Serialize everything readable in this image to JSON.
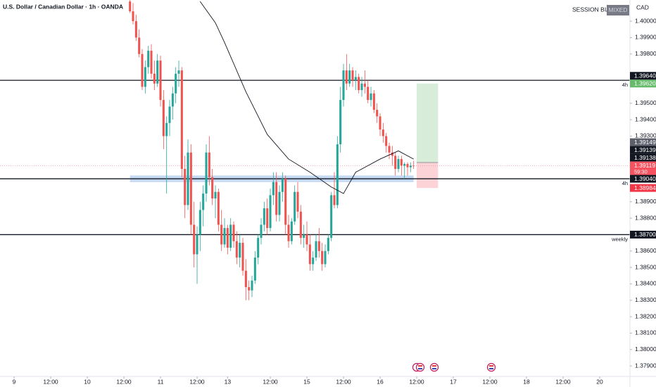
{
  "header": {
    "title": "U.S. Dollar / Canadian Dollar · 1h · OANDA",
    "session_bias": "SESSION BIAS",
    "bias_value": "MIXED",
    "currency": "CAD"
  },
  "chart_data": {
    "type": "candlestick",
    "up_color": "#26a69a",
    "down_color": "#ef5350",
    "x": [
      38,
      39,
      40,
      41,
      42,
      43,
      44,
      45,
      46,
      47,
      48,
      49,
      50,
      51,
      52,
      53,
      54,
      55,
      56,
      57,
      58,
      59,
      60,
      61,
      62,
      63,
      64,
      65,
      66,
      67,
      68,
      69,
      70,
      71,
      72,
      73,
      74,
      75,
      76,
      77,
      78,
      79,
      80,
      81,
      82,
      83,
      84,
      85,
      86,
      87,
      88,
      89,
      90,
      91,
      92,
      93,
      94,
      95,
      96,
      97,
      98,
      99,
      100,
      101,
      102,
      103,
      104,
      105,
      106,
      107,
      108,
      109,
      110,
      111,
      112,
      113,
      114,
      115,
      116,
      117,
      118,
      119,
      120,
      121,
      122,
      123,
      124,
      125,
      126,
      127,
      128,
      129,
      130,
      131
    ],
    "open": [
      1.4012,
      1.4006,
      1.4,
      1.399,
      1.398,
      1.396,
      1.3972,
      1.3982,
      1.3968,
      1.3962,
      1.3976,
      1.3952,
      1.393,
      1.3938,
      1.3948,
      1.3956,
      1.3968,
      1.397,
      1.391,
      1.3888,
      1.392,
      1.3876,
      1.3858,
      1.387,
      1.3885,
      1.3895,
      1.392,
      1.3905,
      1.3892,
      1.3896,
      1.3876,
      1.3864,
      1.3874,
      1.3862,
      1.3876,
      1.3866,
      1.3856,
      1.3865,
      1.3848,
      1.3838,
      1.3836,
      1.3842,
      1.3856,
      1.3868,
      1.3876,
      1.3886,
      1.3874,
      1.3894,
      1.3902,
      1.3882,
      1.3896,
      1.3904,
      1.3876,
      1.3866,
      1.3878,
      1.3896,
      1.3884,
      1.3868,
      1.387,
      1.3864,
      1.3852,
      1.3856,
      1.3866,
      1.386,
      1.3852,
      1.386,
      1.3868,
      1.3894,
      1.3888,
      1.3925,
      1.3952,
      1.397,
      1.3962,
      1.397,
      1.3964,
      1.3966,
      1.3958,
      1.3962,
      1.396,
      1.3952,
      1.3956,
      1.3946,
      1.3942,
      1.3934,
      1.393,
      1.3924,
      1.392,
      1.3918,
      1.391,
      1.3916,
      1.3912,
      1.3913,
      1.3911,
      1.3912
    ],
    "high": [
      1.4015,
      1.4011,
      1.4004,
      1.3995,
      1.3983,
      1.3976,
      1.3985,
      1.3986,
      1.3976,
      1.398,
      1.3979,
      1.3958,
      1.3942,
      1.3952,
      1.396,
      1.3972,
      1.3976,
      1.3972,
      1.3918,
      1.3928,
      1.3925,
      1.389,
      1.3875,
      1.389,
      1.39,
      1.3925,
      1.393,
      1.391,
      1.39,
      1.3898,
      1.3885,
      1.388,
      1.3876,
      1.388,
      1.3878,
      1.3872,
      1.387,
      1.3868,
      1.3855,
      1.3842,
      1.3845,
      1.386,
      1.387,
      1.388,
      1.389,
      1.3892,
      1.3898,
      1.3908,
      1.3908,
      1.39,
      1.3908,
      1.3906,
      1.3882,
      1.388,
      1.39,
      1.3902,
      1.3888,
      1.3876,
      1.3878,
      1.387,
      1.386,
      1.387,
      1.3874,
      1.3865,
      1.3864,
      1.387,
      1.3896,
      1.3908,
      1.393,
      1.396,
      1.3974,
      1.398,
      1.3974,
      1.3972,
      1.397,
      1.3968,
      1.3966,
      1.397,
      1.3964,
      1.396,
      1.3958,
      1.395,
      1.3944,
      1.3938,
      1.3932,
      1.3926,
      1.3924,
      1.392,
      1.3918,
      1.3918,
      1.3914,
      1.3914,
      1.3914,
      1.39149
    ],
    "low": [
      1.4005,
      1.3998,
      1.3988,
      1.3978,
      1.3958,
      1.3956,
      1.3968,
      1.3965,
      1.3958,
      1.396,
      1.3948,
      1.3922,
      1.3895,
      1.393,
      1.394,
      1.395,
      1.396,
      1.3905,
      1.388,
      1.3885,
      1.387,
      1.385,
      1.384,
      1.386,
      1.3875,
      1.389,
      1.39,
      1.3888,
      1.388,
      1.3872,
      1.386,
      1.3862,
      1.3858,
      1.386,
      1.3862,
      1.3852,
      1.385,
      1.3845,
      1.383,
      1.383,
      1.3832,
      1.384,
      1.3852,
      1.3864,
      1.3872,
      1.387,
      1.3872,
      1.3888,
      1.3878,
      1.3878,
      1.389,
      1.387,
      1.3862,
      1.3864,
      1.3876,
      1.388,
      1.3864,
      1.3862,
      1.386,
      1.3848,
      1.3848,
      1.3854,
      1.3856,
      1.3848,
      1.385,
      1.3858,
      1.3866,
      1.3886,
      1.3886,
      1.392,
      1.3948,
      1.3958,
      1.396,
      1.396,
      1.3958,
      1.3956,
      1.3954,
      1.3956,
      1.395,
      1.3948,
      1.3944,
      1.3938,
      1.393,
      1.3926,
      1.392,
      1.3916,
      1.3912,
      1.3906,
      1.3908,
      1.3906,
      1.3904,
      1.3906,
      1.3908,
      1.391
    ],
    "close": [
      1.4006,
      1.4,
      1.399,
      1.398,
      1.396,
      1.3972,
      1.3982,
      1.3968,
      1.3962,
      1.3976,
      1.3952,
      1.393,
      1.3938,
      1.3948,
      1.3956,
      1.3968,
      1.397,
      1.391,
      1.3888,
      1.392,
      1.3876,
      1.3858,
      1.387,
      1.3885,
      1.3895,
      1.392,
      1.3905,
      1.3892,
      1.3896,
      1.3876,
      1.3864,
      1.3874,
      1.3862,
      1.3876,
      1.3866,
      1.3856,
      1.3865,
      1.3848,
      1.3838,
      1.3836,
      1.3842,
      1.3856,
      1.3868,
      1.3876,
      1.3886,
      1.3874,
      1.3894,
      1.3902,
      1.3882,
      1.3896,
      1.3904,
      1.3876,
      1.3866,
      1.3878,
      1.3896,
      1.3884,
      1.3868,
      1.387,
      1.3864,
      1.3852,
      1.3856,
      1.3866,
      1.386,
      1.3852,
      1.386,
      1.3868,
      1.3894,
      1.3888,
      1.3925,
      1.3952,
      1.397,
      1.3962,
      1.397,
      1.3964,
      1.3966,
      1.3958,
      1.3962,
      1.396,
      1.3952,
      1.3956,
      1.3946,
      1.3942,
      1.3934,
      1.393,
      1.3924,
      1.392,
      1.3918,
      1.391,
      1.3916,
      1.3912,
      1.3913,
      1.3911,
      1.3912,
      1.39119
    ],
    "moving_average": {
      "color": "#131722",
      "x": [
        61,
        66,
        69,
        76,
        83,
        90,
        97,
        104,
        108,
        112,
        120,
        126,
        131
      ],
      "values": [
        1.4012,
        1.3999,
        1.3987,
        1.3957,
        1.3931,
        1.3916,
        1.3908,
        1.3899,
        1.3895,
        1.3908,
        1.3916,
        1.3921,
        1.3916
      ]
    },
    "xlim": [
      -4.62,
      201.92
    ],
    "ylim": [
      1.37836,
      1.40129
    ],
    "xticks": [
      {
        "value": 0,
        "label": "9"
      },
      {
        "value": 12,
        "label": "12:00"
      },
      {
        "value": 24,
        "label": "10"
      },
      {
        "value": 36,
        "label": "12:00"
      },
      {
        "value": 48,
        "label": "11"
      },
      {
        "value": 60,
        "label": "12:00"
      },
      {
        "value": 70,
        "label": "13"
      },
      {
        "value": 84,
        "label": "12:00"
      },
      {
        "value": 96,
        "label": "15"
      },
      {
        "value": 108,
        "label": "12:00"
      },
      {
        "value": 120,
        "label": "16"
      },
      {
        "value": 132,
        "label": "12:00"
      },
      {
        "value": 144,
        "label": "17"
      },
      {
        "value": 156,
        "label": "12:00"
      },
      {
        "value": 168,
        "label": "18"
      },
      {
        "value": 180,
        "label": "12:00"
      },
      {
        "value": 192,
        "label": "20"
      }
    ],
    "yticks": [
      {
        "value": 1.4,
        "label": "1.40000"
      },
      {
        "value": 1.399,
        "label": "1.39900"
      },
      {
        "value": 1.398,
        "label": "1.39800"
      },
      {
        "value": 1.395,
        "label": "1.39500"
      },
      {
        "value": 1.394,
        "label": "1.39400"
      },
      {
        "value": 1.393,
        "label": "1.39300"
      },
      {
        "value": 1.389,
        "label": "1.38900"
      },
      {
        "value": 1.388,
        "label": "1.38800"
      },
      {
        "value": 1.386,
        "label": "1.38600"
      },
      {
        "value": 1.385,
        "label": "1.38500"
      },
      {
        "value": 1.384,
        "label": "1.38400"
      },
      {
        "value": 1.383,
        "label": "1.38300"
      },
      {
        "value": 1.382,
        "label": "1.38200"
      },
      {
        "value": 1.381,
        "label": "1.38100"
      },
      {
        "value": 1.38,
        "label": "1.38000"
      },
      {
        "value": 1.379,
        "label": "1.37900"
      }
    ],
    "levels": [
      {
        "value": 1.3964,
        "label": "4h"
      },
      {
        "value": 1.3904,
        "label": "4h"
      },
      {
        "value": 1.387,
        "label": "weekly"
      }
    ],
    "zone": {
      "top": 1.3906,
      "bottom": 1.3902,
      "start": 38,
      "end": 131,
      "color": "#bbd3f0"
    },
    "position": {
      "start": 132,
      "end": 139,
      "target": 1.3962,
      "entry": 1.39139,
      "stop": 1.38984
    },
    "price_labels": [
      {
        "value": 1.3964,
        "label": "1.39640",
        "color": "#131722"
      },
      {
        "value": 1.3962,
        "label": "1.39620",
        "color": "#66bb6a"
      },
      {
        "value": 1.39149,
        "label": "1.39149",
        "color": "#5d606b"
      },
      {
        "value": 1.39139,
        "label": "1.39139",
        "color": "#131722"
      },
      {
        "value": 1.39138,
        "label": "1.39138",
        "color": "#131722"
      },
      {
        "value": 1.39119,
        "label": "1.39119",
        "color": "#f7525f",
        "countdown": "59:30"
      },
      {
        "value": 1.3904,
        "label": "1.39040",
        "color": "#131722"
      },
      {
        "value": 1.38984,
        "label": "1.38984",
        "color": "#f23645"
      },
      {
        "value": 1.387,
        "label": "1.38700",
        "color": "#131722"
      }
    ]
  }
}
